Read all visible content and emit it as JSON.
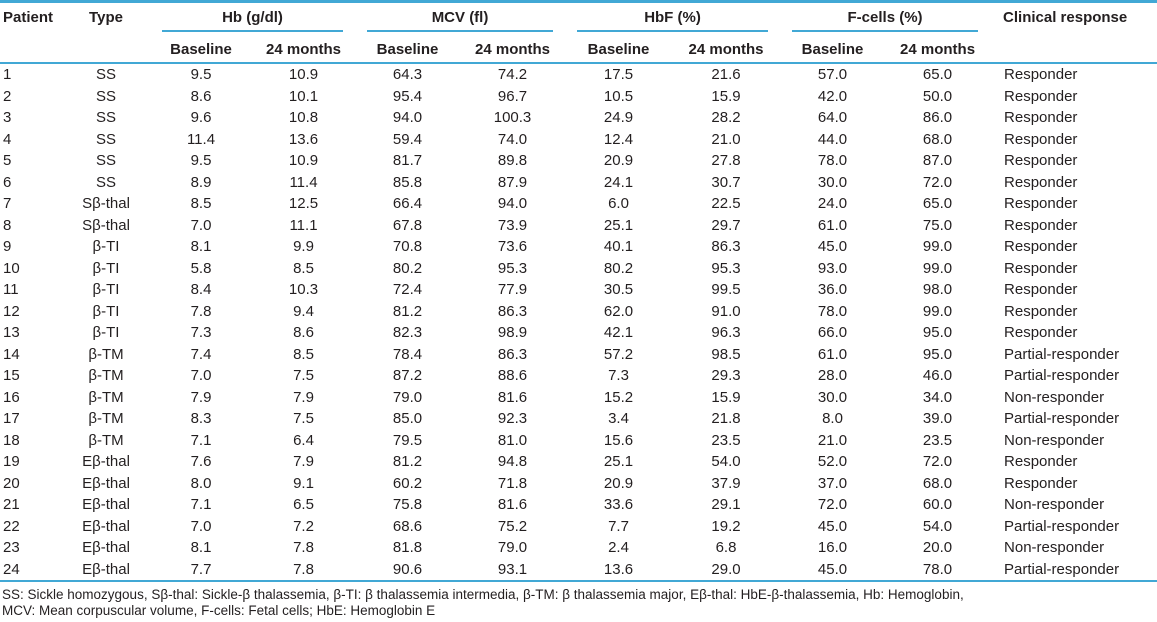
{
  "table": {
    "header": {
      "patient": "Patient",
      "type": "Type",
      "groups": [
        {
          "label": "Hb (g/dl)"
        },
        {
          "label": "MCV (fl)"
        },
        {
          "label": "HbF (%)"
        },
        {
          "label": "F-cells (%)"
        }
      ],
      "sub_baseline": "Baseline",
      "sub_24months": "24 months",
      "clinical": "Clinical response"
    },
    "rows": [
      [
        "1",
        "SS",
        "9.5",
        "10.9",
        "64.3",
        "74.2",
        "17.5",
        "21.6",
        "57.0",
        "65.0",
        "Responder"
      ],
      [
        "2",
        "SS",
        "8.6",
        "10.1",
        "95.4",
        "96.7",
        "10.5",
        "15.9",
        "42.0",
        "50.0",
        "Responder"
      ],
      [
        "3",
        "SS",
        "9.6",
        "10.8",
        "94.0",
        "100.3",
        "24.9",
        "28.2",
        "64.0",
        "86.0",
        "Responder"
      ],
      [
        "4",
        "SS",
        "11.4",
        "13.6",
        "59.4",
        "74.0",
        "12.4",
        "21.0",
        "44.0",
        "68.0",
        "Responder"
      ],
      [
        "5",
        "SS",
        "9.5",
        "10.9",
        "81.7",
        "89.8",
        "20.9",
        "27.8",
        "78.0",
        "87.0",
        "Responder"
      ],
      [
        "6",
        "SS",
        "8.9",
        "11.4",
        "85.8",
        "87.9",
        "24.1",
        "30.7",
        "30.0",
        "72.0",
        "Responder"
      ],
      [
        "7",
        "Sβ-thal",
        "8.5",
        "12.5",
        "66.4",
        "94.0",
        "6.0",
        "22.5",
        "24.0",
        "65.0",
        "Responder"
      ],
      [
        "8",
        "Sβ-thal",
        "7.0",
        "11.1",
        "67.8",
        "73.9",
        "25.1",
        "29.7",
        "61.0",
        "75.0",
        "Responder"
      ],
      [
        "9",
        "β-TI",
        "8.1",
        "9.9",
        "70.8",
        "73.6",
        "40.1",
        "86.3",
        "45.0",
        "99.0",
        "Responder"
      ],
      [
        "10",
        "β-TI",
        "5.8",
        "8.5",
        "80.2",
        "95.3",
        "80.2",
        "95.3",
        "93.0",
        "99.0",
        "Responder"
      ],
      [
        "11",
        "β-TI",
        "8.4",
        "10.3",
        "72.4",
        "77.9",
        "30.5",
        "99.5",
        "36.0",
        "98.0",
        "Responder"
      ],
      [
        "12",
        "β-TI",
        "7.8",
        "9.4",
        "81.2",
        "86.3",
        "62.0",
        "91.0",
        "78.0",
        "99.0",
        "Responder"
      ],
      [
        "13",
        "β-TI",
        "7.3",
        "8.6",
        "82.3",
        "98.9",
        "42.1",
        "96.3",
        "66.0",
        "95.0",
        "Responder"
      ],
      [
        "14",
        "β-TM",
        "7.4",
        "8.5",
        "78.4",
        "86.3",
        "57.2",
        "98.5",
        "61.0",
        "95.0",
        "Partial-responder"
      ],
      [
        "15",
        "β-TM",
        "7.0",
        "7.5",
        "87.2",
        "88.6",
        "7.3",
        "29.3",
        "28.0",
        "46.0",
        "Partial-responder"
      ],
      [
        "16",
        "β-TM",
        "7.9",
        "7.9",
        "79.0",
        "81.6",
        "15.2",
        "15.9",
        "30.0",
        "34.0",
        "Non-responder"
      ],
      [
        "17",
        "β-TM",
        "8.3",
        "7.5",
        "85.0",
        "92.3",
        "3.4",
        "21.8",
        "8.0",
        "39.0",
        "Partial-responder"
      ],
      [
        "18",
        "β-TM",
        "7.1",
        "6.4",
        "79.5",
        "81.0",
        "15.6",
        "23.5",
        "21.0",
        "23.5",
        "Non-responder"
      ],
      [
        "19",
        "Eβ-thal",
        "7.6",
        "7.9",
        "81.2",
        "94.8",
        "25.1",
        "54.0",
        "52.0",
        "72.0",
        "Responder"
      ],
      [
        "20",
        "Eβ-thal",
        "8.0",
        "9.1",
        "60.2",
        "71.8",
        "20.9",
        "37.9",
        "37.0",
        "68.0",
        "Responder"
      ],
      [
        "21",
        "Eβ-thal",
        "7.1",
        "6.5",
        "75.8",
        "81.6",
        "33.6",
        "29.1",
        "72.0",
        "60.0",
        "Non-responder"
      ],
      [
        "22",
        "Eβ-thal",
        "7.0",
        "7.2",
        "68.6",
        "75.2",
        "7.7",
        "19.2",
        "45.0",
        "54.0",
        "Partial-responder"
      ],
      [
        "23",
        "Eβ-thal",
        "8.1",
        "7.8",
        "81.8",
        "79.0",
        "2.4",
        "6.8",
        "16.0",
        "20.0",
        "Non-responder"
      ],
      [
        "24",
        "Eβ-thal",
        "7.7",
        "7.8",
        "90.6",
        "93.1",
        "13.6",
        "29.0",
        "45.0",
        "78.0",
        "Partial-responder"
      ]
    ]
  },
  "footnote": {
    "line1": "SS: Sickle homozygous, Sβ-thal: Sickle-β thalassemia, β-TI: β thalassemia intermedia, β-TM: β thalassemia major, Eβ-thal: HbE-β-thalassemia, Hb: Hemoglobin,",
    "line2": "MCV: Mean corpuscular volume, F-cells: Fetal cells; HbE: Hemoglobin E"
  },
  "colors": {
    "rule": "#41a8d5",
    "text": "#231f20"
  }
}
